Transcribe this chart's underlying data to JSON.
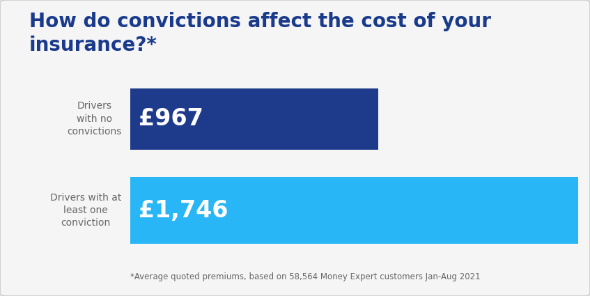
{
  "title_line1": "How do convictions affect the cost of your",
  "title_line2": "insurance?*",
  "title_color": "#1a3a8c",
  "title_fontsize": 20,
  "outer_background": "#e8e8e8",
  "card_background": "#f5f5f5",
  "categories": [
    "Drivers\nwith no\nconvictions",
    "Drivers with at\nleast one\nconviction"
  ],
  "values": [
    967,
    1746
  ],
  "max_value": 1746,
  "bar_colors": [
    "#1e3a8a",
    "#29b6f6"
  ],
  "bar_labels": [
    "£967",
    "£1,746"
  ],
  "bar_label_fontsize": 24,
  "bar_label_color": "#ffffff",
  "category_fontsize": 10,
  "category_color": "#666666",
  "footnote": "*Average quoted premiums, based on 58,564 Money Expert customers Jan-Aug 2021",
  "footnote_fontsize": 8.5,
  "footnote_color": "#666666"
}
